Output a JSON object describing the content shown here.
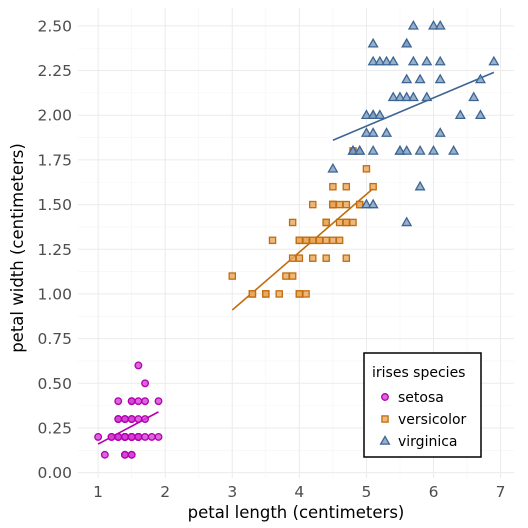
{
  "chart_data": {
    "type": "scatter",
    "xlabel": "petal length (centimeters)",
    "ylabel": "petal width (centimeters)",
    "xlim": [
      0.7,
      7.2
    ],
    "ylim": [
      -0.03,
      2.6
    ],
    "x_ticks": [
      1,
      2,
      3,
      4,
      5,
      6,
      7
    ],
    "y_ticks": [
      0.0,
      0.25,
      0.5,
      0.75,
      1.0,
      1.25,
      1.5,
      1.75,
      2.0,
      2.25,
      2.5
    ],
    "y_tick_labels": [
      "0.00",
      "0.25",
      "0.50",
      "0.75",
      "1.00",
      "1.25",
      "1.50",
      "1.75",
      "2.00",
      "2.25",
      "2.50"
    ],
    "grid": true,
    "legend": {
      "title": "irises species",
      "position": "bottom-right"
    },
    "series": [
      {
        "name": "setosa",
        "marker": "circle",
        "fill": "#d33fd3",
        "stroke": "#b000b0",
        "points": [
          [
            1.0,
            0.2
          ],
          [
            1.1,
            0.1
          ],
          [
            1.2,
            0.2
          ],
          [
            1.2,
            0.2
          ],
          [
            1.3,
            0.2
          ],
          [
            1.3,
            0.2
          ],
          [
            1.3,
            0.3
          ],
          [
            1.3,
            0.4
          ],
          [
            1.3,
            0.3
          ],
          [
            1.3,
            0.2
          ],
          [
            1.3,
            0.2
          ],
          [
            1.4,
            0.2
          ],
          [
            1.4,
            0.2
          ],
          [
            1.4,
            0.3
          ],
          [
            1.4,
            0.2
          ],
          [
            1.4,
            0.1
          ],
          [
            1.4,
            0.2
          ],
          [
            1.4,
            0.1
          ],
          [
            1.4,
            0.2
          ],
          [
            1.4,
            0.3
          ],
          [
            1.4,
            0.2
          ],
          [
            1.4,
            0.2
          ],
          [
            1.5,
            0.2
          ],
          [
            1.5,
            0.2
          ],
          [
            1.5,
            0.1
          ],
          [
            1.5,
            0.2
          ],
          [
            1.5,
            0.4
          ],
          [
            1.5,
            0.3
          ],
          [
            1.5,
            0.3
          ],
          [
            1.5,
            0.4
          ],
          [
            1.5,
            0.2
          ],
          [
            1.5,
            0.1
          ],
          [
            1.5,
            0.2
          ],
          [
            1.5,
            0.2
          ],
          [
            1.6,
            0.2
          ],
          [
            1.6,
            0.2
          ],
          [
            1.6,
            0.2
          ],
          [
            1.6,
            0.4
          ],
          [
            1.6,
            0.2
          ],
          [
            1.6,
            0.6
          ],
          [
            1.6,
            0.2
          ],
          [
            1.6,
            0.2
          ],
          [
            1.7,
            0.4
          ],
          [
            1.7,
            0.3
          ],
          [
            1.7,
            0.2
          ],
          [
            1.7,
            0.5
          ],
          [
            1.9,
            0.2
          ],
          [
            1.9,
            0.4
          ],
          [
            1.6,
            0.3
          ],
          [
            1.8,
            0.2
          ]
        ],
        "fit": {
          "x": [
            1.0,
            1.9
          ],
          "y": [
            0.16,
            0.34
          ]
        }
      },
      {
        "name": "versicolor",
        "marker": "square",
        "fill": "#e8a65a",
        "stroke": "#c16d0e",
        "points": [
          [
            3.0,
            1.1
          ],
          [
            3.3,
            1.0
          ],
          [
            3.3,
            1.0
          ],
          [
            3.5,
            1.0
          ],
          [
            3.5,
            1.0
          ],
          [
            3.6,
            1.3
          ],
          [
            3.7,
            1.0
          ],
          [
            3.8,
            1.1
          ],
          [
            3.9,
            1.4
          ],
          [
            3.9,
            1.1
          ],
          [
            3.9,
            1.2
          ],
          [
            4.0,
            1.0
          ],
          [
            4.0,
            1.3
          ],
          [
            4.0,
            1.2
          ],
          [
            4.0,
            1.3
          ],
          [
            4.0,
            1.0
          ],
          [
            4.1,
            1.0
          ],
          [
            4.1,
            1.3
          ],
          [
            4.1,
            1.3
          ],
          [
            4.2,
            1.3
          ],
          [
            4.2,
            1.5
          ],
          [
            4.2,
            1.2
          ],
          [
            4.2,
            1.3
          ],
          [
            4.3,
            1.3
          ],
          [
            4.3,
            1.3
          ],
          [
            4.4,
            1.4
          ],
          [
            4.4,
            1.3
          ],
          [
            4.4,
            1.2
          ],
          [
            4.4,
            1.4
          ],
          [
            4.5,
            1.5
          ],
          [
            4.5,
            1.5
          ],
          [
            4.5,
            1.3
          ],
          [
            4.5,
            1.5
          ],
          [
            4.5,
            1.6
          ],
          [
            4.5,
            1.5
          ],
          [
            4.5,
            1.5
          ],
          [
            4.6,
            1.3
          ],
          [
            4.6,
            1.5
          ],
          [
            4.6,
            1.4
          ],
          [
            4.7,
            1.4
          ],
          [
            4.7,
            1.2
          ],
          [
            4.7,
            1.5
          ],
          [
            4.7,
            1.4
          ],
          [
            4.8,
            1.4
          ],
          [
            4.8,
            1.8
          ],
          [
            4.9,
            1.5
          ],
          [
            4.9,
            1.5
          ],
          [
            5.0,
            1.7
          ],
          [
            5.1,
            1.6
          ],
          [
            4.7,
            1.6
          ]
        ],
        "fit": {
          "x": [
            3.0,
            5.1
          ],
          "y": [
            0.91,
            1.59
          ]
        }
      },
      {
        "name": "virginica",
        "marker": "triangle",
        "fill": "#7d9cbe",
        "stroke": "#3d6594",
        "points": [
          [
            4.5,
            1.7
          ],
          [
            4.8,
            1.8
          ],
          [
            4.8,
            1.8
          ],
          [
            4.9,
            1.8
          ],
          [
            4.9,
            1.8
          ],
          [
            5.0,
            2.0
          ],
          [
            5.0,
            1.5
          ],
          [
            5.0,
            1.9
          ],
          [
            5.1,
            1.5
          ],
          [
            5.1,
            1.9
          ],
          [
            5.1,
            2.0
          ],
          [
            5.1,
            2.4
          ],
          [
            5.1,
            2.3
          ],
          [
            5.1,
            1.8
          ],
          [
            5.1,
            2.0
          ],
          [
            5.2,
            2.3
          ],
          [
            5.2,
            2.0
          ],
          [
            5.3,
            2.3
          ],
          [
            5.3,
            1.9
          ],
          [
            5.4,
            2.1
          ],
          [
            5.4,
            2.3
          ],
          [
            5.5,
            2.1
          ],
          [
            5.5,
            1.8
          ],
          [
            5.5,
            1.8
          ],
          [
            5.6,
            2.4
          ],
          [
            5.6,
            2.2
          ],
          [
            5.6,
            2.1
          ],
          [
            5.6,
            1.4
          ],
          [
            5.6,
            1.8
          ],
          [
            5.6,
            2.4
          ],
          [
            5.7,
            2.5
          ],
          [
            5.7,
            2.3
          ],
          [
            5.7,
            2.1
          ],
          [
            5.8,
            2.2
          ],
          [
            5.8,
            1.8
          ],
          [
            5.8,
            1.6
          ],
          [
            5.9,
            2.1
          ],
          [
            5.9,
            2.3
          ],
          [
            6.0,
            2.5
          ],
          [
            6.0,
            1.8
          ],
          [
            6.1,
            2.5
          ],
          [
            6.1,
            2.3
          ],
          [
            6.1,
            1.9
          ],
          [
            6.1,
            2.2
          ],
          [
            6.3,
            1.8
          ],
          [
            6.4,
            2.0
          ],
          [
            6.6,
            2.1
          ],
          [
            6.7,
            2.2
          ],
          [
            6.7,
            2.0
          ],
          [
            6.9,
            2.3
          ]
        ],
        "fit": {
          "x": [
            4.5,
            6.9
          ],
          "y": [
            1.86,
            2.24
          ]
        }
      }
    ]
  }
}
